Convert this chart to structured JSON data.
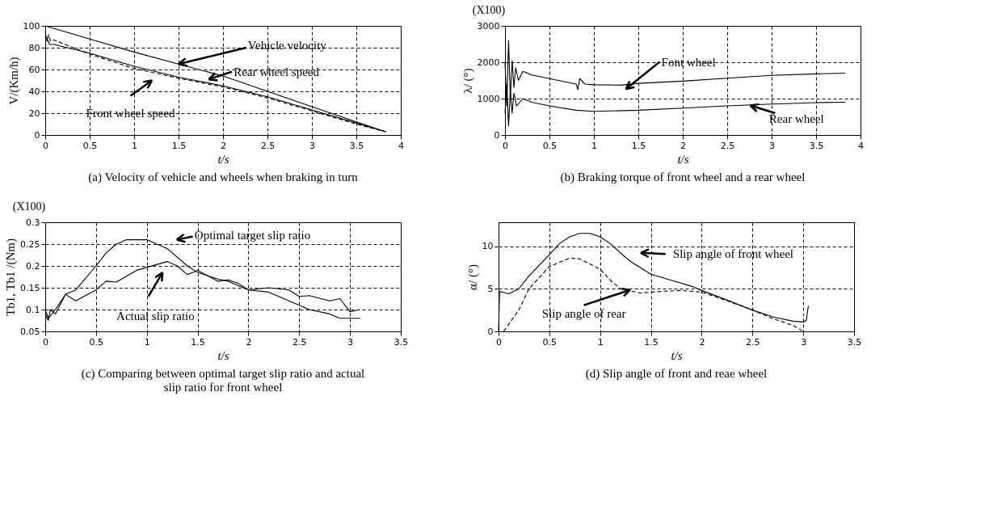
{
  "chart_data": [
    {
      "type": "line",
      "title": "(a) Velocity of vehicle and wheels when braking in turn",
      "xlabel": "t/s",
      "ylabel": "V/(Km/h)",
      "xlim": [
        0,
        4
      ],
      "ylim": [
        0,
        100
      ],
      "xticks": [
        0,
        0.5,
        1,
        1.5,
        2,
        2.5,
        3,
        3.5,
        4
      ],
      "yticks": [
        0,
        20,
        40,
        60,
        80,
        100
      ],
      "grid": true,
      "series": [
        {
          "name": "Vehicle velocity",
          "color": "#000000",
          "line_style": "solid",
          "x": [
            0,
            0.5,
            1,
            1.5,
            2,
            2.5,
            3,
            3.5,
            3.83
          ],
          "values": [
            100,
            88,
            76,
            65,
            54,
            40,
            26,
            12,
            3
          ]
        },
        {
          "name": "Rear wheel speed",
          "color": "#000000",
          "line_style": "solid",
          "x": [
            0,
            0.05,
            0.1,
            0.5,
            1,
            1.5,
            2,
            2.5,
            3,
            3.5,
            3.83
          ],
          "values": [
            92,
            83,
            83,
            75,
            63,
            53,
            45,
            35,
            23,
            11,
            3
          ]
        },
        {
          "name": "Front wheel speed",
          "color": "#000000",
          "line_style": "dashed",
          "x": [
            0,
            0.02,
            0.04,
            0.06,
            0.1,
            0.5,
            1,
            1.5,
            2,
            2.5,
            3,
            3.5,
            3.83
          ],
          "values": [
            95,
            86,
            92,
            86,
            87,
            74,
            61,
            52,
            44,
            34,
            22,
            10,
            3
          ]
        }
      ]
    },
    {
      "type": "line",
      "title": "(b) Braking torque of front wheel and a rear wheel",
      "xlabel": "t/s",
      "ylabel": "λ/ (°)",
      "xlim": [
        0,
        4
      ],
      "ylim": [
        0,
        3000
      ],
      "xticks": [
        0,
        0.5,
        1,
        1.5,
        2,
        2.5,
        3,
        3.5,
        4
      ],
      "yticks": [
        0,
        1000,
        2000,
        3000
      ],
      "grid": true,
      "annotations": [
        "(X100)"
      ],
      "series": [
        {
          "name": "Font wheel",
          "color": "#000000",
          "line_style": "solid",
          "x": [
            0,
            0.02,
            0.04,
            0.06,
            0.08,
            0.1,
            0.12,
            0.15,
            0.2,
            0.3,
            0.5,
            0.8,
            0.82,
            0.84,
            0.9,
            1,
            1.3,
            1.5,
            2,
            2.5,
            3,
            3.5,
            3.83
          ],
          "values": [
            2000,
            800,
            2600,
            1000,
            2050,
            1300,
            1850,
            1500,
            1750,
            1650,
            1550,
            1400,
            1250,
            1550,
            1400,
            1380,
            1370,
            1420,
            1480,
            1560,
            1640,
            1680,
            1700
          ]
        },
        {
          "name": "Rear wheel",
          "color": "#000000",
          "line_style": "solid",
          "x": [
            0,
            0.02,
            0.04,
            0.06,
            0.08,
            0.1,
            0.13,
            0.2,
            0.3,
            0.5,
            0.8,
            1,
            1.5,
            2,
            2.5,
            3,
            3.5,
            3.83
          ],
          "values": [
            600,
            1400,
            250,
            1200,
            600,
            1150,
            800,
            1000,
            900,
            800,
            680,
            650,
            680,
            740,
            800,
            850,
            890,
            900
          ]
        }
      ]
    },
    {
      "type": "line",
      "title": "(c) Comparing between optimal target slip ratio and actual slip ratio for front wheel",
      "xlabel": "t/s",
      "ylabel": "Tb1, Tb1 /(Nm)",
      "xlim": [
        0,
        3.5
      ],
      "ylim": [
        0.05,
        0.3
      ],
      "xticks": [
        0,
        0.5,
        1,
        1.5,
        2,
        2.5,
        3,
        3.5
      ],
      "yticks": [
        0.05,
        0.1,
        0.15,
        0.2,
        0.25,
        0.3
      ],
      "grid": true,
      "annotations": [
        "(X100)"
      ],
      "series": [
        {
          "name": "Optimal target slip ratio",
          "color": "#000000",
          "line_style": "solid",
          "x": [
            0,
            0.03,
            0.1,
            0.2,
            0.3,
            0.5,
            0.6,
            0.7,
            0.8,
            1,
            1.1,
            1.2,
            1.4,
            1.5,
            1.7,
            1.8,
            2,
            2.2,
            2.4,
            2.6,
            2.8,
            2.9,
            3.1
          ],
          "values": [
            0.1,
            0.08,
            0.1,
            0.135,
            0.145,
            0.2,
            0.23,
            0.25,
            0.26,
            0.26,
            0.25,
            0.24,
            0.2,
            0.185,
            0.17,
            0.165,
            0.145,
            0.14,
            0.12,
            0.1,
            0.09,
            0.08,
            0.08
          ]
        },
        {
          "name": "Actual slip ratio",
          "color": "#000000",
          "line_style": "solid",
          "x": [
            0,
            0.03,
            0.05,
            0.1,
            0.2,
            0.3,
            0.5,
            0.6,
            0.7,
            0.9,
            1.2,
            1.3,
            1.4,
            1.5,
            1.7,
            1.8,
            1.9,
            2,
            2.2,
            2.4,
            2.5,
            2.6,
            2.8,
            2.9,
            3,
            3.1
          ],
          "values": [
            0.09,
            0.075,
            0.1,
            0.09,
            0.135,
            0.12,
            0.145,
            0.165,
            0.163,
            0.19,
            0.21,
            0.2,
            0.18,
            0.19,
            0.165,
            0.168,
            0.16,
            0.145,
            0.15,
            0.145,
            0.13,
            0.132,
            0.12,
            0.125,
            0.095,
            0.1
          ]
        }
      ]
    },
    {
      "type": "line",
      "title": "(d) Slip angle of front and reae wheel",
      "xlabel": "t/s",
      "ylabel": "α/ (°)",
      "xlim": [
        0,
        3.5
      ],
      "ylim": [
        0,
        12.8
      ],
      "xticks": [
        0,
        0.5,
        1,
        1.5,
        2,
        2.5,
        3,
        3.5
      ],
      "yticks": [
        0,
        5,
        10
      ],
      "grid": true,
      "series": [
        {
          "name": "Slip angle of front wheel",
          "color": "#000000",
          "line_style": "solid",
          "x": [
            0,
            0.01,
            0.1,
            0.2,
            0.3,
            0.5,
            0.6,
            0.7,
            0.8,
            0.9,
            1,
            1.1,
            1.2,
            1.3,
            1.5,
            1.7,
            1.9,
            2,
            2.2,
            2.5,
            2.7,
            2.9,
            3,
            3.03,
            3.05
          ],
          "values": [
            0,
            4.7,
            4.4,
            5,
            6.5,
            9,
            10.3,
            11.1,
            11.5,
            11.5,
            11.1,
            10.3,
            9.2,
            8.2,
            6.7,
            6,
            5.3,
            4.8,
            3.9,
            2.5,
            1.7,
            1.2,
            1.1,
            1.3,
            3
          ]
        },
        {
          "name": "Slip   angle   of   rear",
          "color": "#000000",
          "line_style": "dashed",
          "x": [
            0.05,
            0.2,
            0.3,
            0.5,
            0.7,
            0.8,
            1,
            1.1,
            1.2,
            1.4,
            1.6,
            1.8,
            2,
            2.2,
            2.5,
            2.7,
            2.9,
            3
          ],
          "values": [
            0,
            2.5,
            5,
            7.6,
            8.6,
            8.5,
            7.3,
            6,
            5,
            4.5,
            4.7,
            4.8,
            4.6,
            3.8,
            2.5,
            1.5,
            0.7,
            0
          ]
        }
      ]
    }
  ]
}
